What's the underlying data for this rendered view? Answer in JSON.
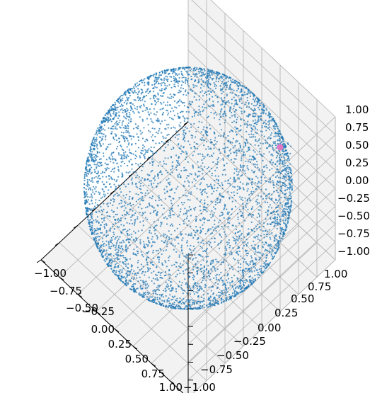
{
  "chart_data": {
    "type": "scatter",
    "projection": "3d",
    "title": "",
    "xlabel": "",
    "ylabel": "",
    "zlabel": "",
    "xlim": [
      -1.0,
      1.0
    ],
    "ylim": [
      -1.0,
      1.0
    ],
    "zlim": [
      -1.0,
      1.0
    ],
    "grid": true,
    "legend": "none",
    "x_tick_labels": [
      "−1.00",
      "−0.75",
      "−0.50",
      "−0.25",
      "0.00",
      "0.25",
      "0.50",
      "0.75",
      "1.00"
    ],
    "y_tick_labels": [
      "−1.00",
      "−0.75",
      "−0.50",
      "−0.25",
      "0.00",
      "0.25",
      "0.50",
      "0.75",
      "1.00"
    ],
    "z_tick_labels": [
      "−1.00",
      "−0.75",
      "−0.50",
      "−0.25",
      "0.00",
      "0.25",
      "0.50",
      "0.75",
      "1.00"
    ],
    "series": [
      {
        "kind": "uniform points on unit sphere",
        "distribution": "uniform on sphere surface",
        "radius": 1.0,
        "count": 5000,
        "color": "#1f77b4"
      },
      {
        "kind": "highlighted point",
        "x": -0.69,
        "y": 0.56,
        "z": 0.45,
        "color": "#e377c2"
      }
    ],
    "cluster": {
      "center": [
        -0.69,
        0.56,
        0.45
      ],
      "count": 30
    }
  },
  "colors": {
    "pane": "#f2f2f2",
    "grid": "#b0b0b0",
    "axis_line": "#000000"
  }
}
